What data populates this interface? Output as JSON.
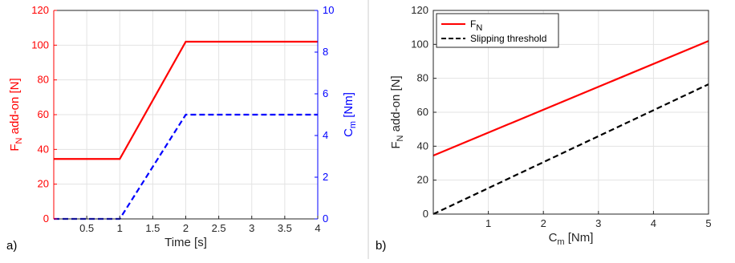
{
  "chart_data": [
    {
      "panel_label": "a)",
      "type": "line",
      "xlabel": "Time [s]",
      "xlim": [
        0,
        4
      ],
      "xticks": [
        0.5,
        1,
        1.5,
        2,
        2.5,
        3,
        3.5,
        4
      ],
      "xtick_labels": [
        "0.5",
        "1",
        "1.5",
        "2",
        "2.5",
        "3",
        "3.5",
        "4"
      ],
      "left_axis": {
        "label_main": "F",
        "label_sub": "N",
        "label_rest": " add-on [N]",
        "color": "#ff0000",
        "ylim": [
          0,
          120
        ],
        "ticks": [
          0,
          20,
          40,
          60,
          80,
          100,
          120
        ],
        "tick_labels": [
          "0",
          "20",
          "40",
          "60",
          "80",
          "100",
          "120"
        ]
      },
      "right_axis": {
        "label_main": "C",
        "label_sub": "m",
        "label_rest": " [Nm]",
        "color": "#0000ff",
        "ylim": [
          0,
          10
        ],
        "ticks": [
          0,
          2,
          4,
          6,
          8,
          10
        ],
        "tick_labels": [
          "0",
          "2",
          "4",
          "6",
          "8",
          "10"
        ]
      },
      "grid": true,
      "series": [
        {
          "axis": "left",
          "color": "#ff0000",
          "dash": "solid",
          "x": [
            0,
            1,
            2,
            4
          ],
          "y": [
            34.5,
            34.5,
            102,
            102
          ]
        },
        {
          "axis": "right",
          "color": "#0000ff",
          "dash": "dashed",
          "x": [
            0,
            1,
            2,
            4
          ],
          "y": [
            0,
            0,
            5,
            5
          ]
        }
      ]
    },
    {
      "panel_label": "b)",
      "type": "line",
      "xlabel_main": "C",
      "xlabel_sub": "m",
      "xlabel_rest": " [Nm]",
      "xlim": [
        0,
        5
      ],
      "xticks": [
        1,
        2,
        3,
        4,
        5
      ],
      "xtick_labels": [
        "1",
        "2",
        "3",
        "4",
        "5"
      ],
      "ylabel_main": "F",
      "ylabel_sub": "N",
      "ylabel_rest": " add-on [N]",
      "ylim": [
        0,
        120
      ],
      "yticks": [
        0,
        20,
        40,
        60,
        80,
        100,
        120
      ],
      "ytick_labels": [
        "0",
        "20",
        "40",
        "60",
        "80",
        "100",
        "120"
      ],
      "grid": true,
      "legend_position": "top-left",
      "series": [
        {
          "name_main": "F",
          "name_sub": "N",
          "color": "#ff0000",
          "dash": "solid",
          "x": [
            0,
            5
          ],
          "y": [
            34.5,
            102
          ]
        },
        {
          "name_main": "Slipping threshold",
          "name_sub": "",
          "color": "#000000",
          "dash": "dashed",
          "x": [
            0,
            5
          ],
          "y": [
            0,
            76.5
          ]
        }
      ]
    }
  ]
}
